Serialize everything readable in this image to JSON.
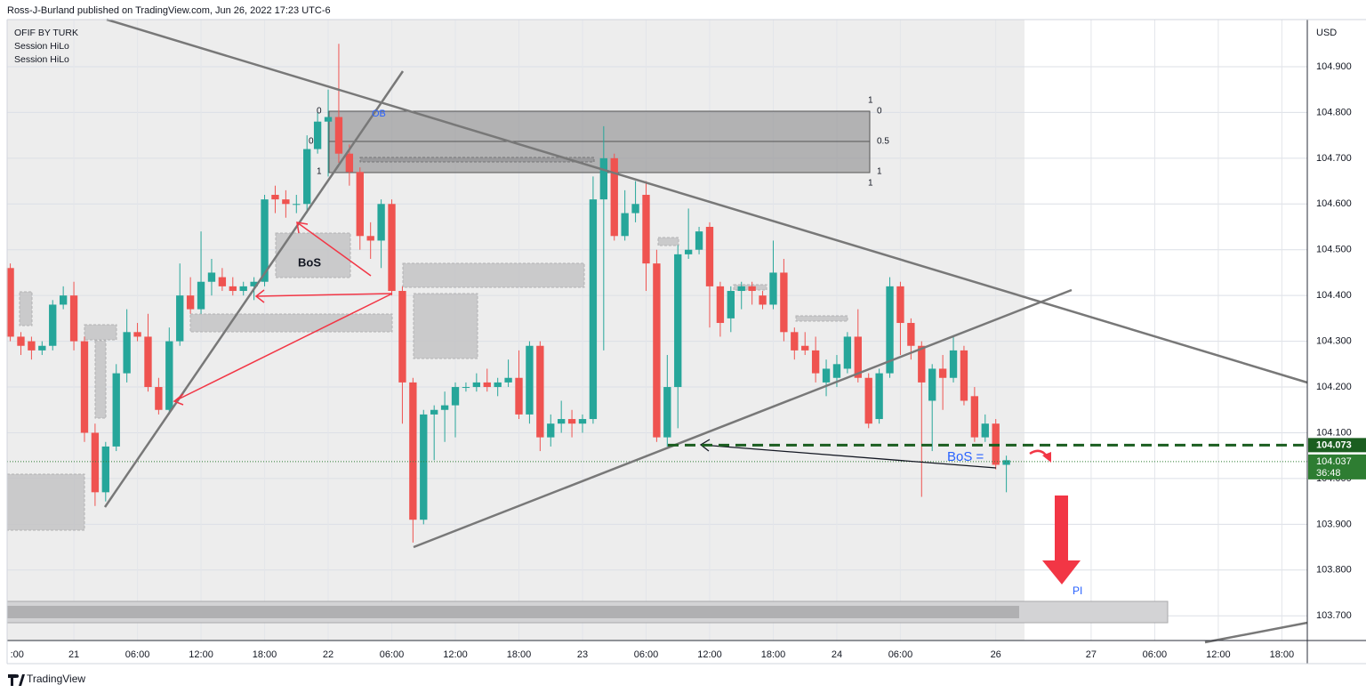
{
  "header": "Ross-J-Burland published on TradingView.com, Jun 26, 2022 17:23 UTC-6",
  "footer": "TradingView",
  "chart_data": {
    "type": "candlestick",
    "legend": [
      "OFIF BY TURK",
      "Session HiLo",
      "Session HiLo"
    ],
    "y_axis_label": "USD",
    "up_color": "#26a69a",
    "down_color": "#ef5350",
    "grid": true,
    "ylim": [
      103.646,
      105.003
    ],
    "yticks": [
      {
        "value": 103.7,
        "label": "103.700"
      },
      {
        "value": 103.8,
        "label": "103.800"
      },
      {
        "value": 103.9,
        "label": "103.900"
      },
      {
        "value": 104.0,
        "label": "104.000"
      },
      {
        "value": 104.1,
        "label": "104.100"
      },
      {
        "value": 104.2,
        "label": "104.200"
      },
      {
        "value": 104.3,
        "label": "104.300"
      },
      {
        "value": 104.4,
        "label": "104.400"
      },
      {
        "value": 104.5,
        "label": "104.500"
      },
      {
        "value": 104.6,
        "label": "104.600"
      },
      {
        "value": 104.7,
        "label": "104.700"
      },
      {
        "value": 104.8,
        "label": "104.800"
      },
      {
        "value": 104.9,
        "label": "104.900"
      }
    ],
    "xlim": [
      -0.3,
      122.4
    ],
    "xticks": [
      {
        "value": 0,
        "label": ":00"
      },
      {
        "value": 6,
        "label": "21"
      },
      {
        "value": 12,
        "label": "06:00"
      },
      {
        "value": 18,
        "label": "12:00"
      },
      {
        "value": 24,
        "label": "18:00"
      },
      {
        "value": 30,
        "label": "22"
      },
      {
        "value": 36,
        "label": "06:00"
      },
      {
        "value": 42,
        "label": "12:00"
      },
      {
        "value": 48,
        "label": "18:00"
      },
      {
        "value": 54,
        "label": "23"
      },
      {
        "value": 60,
        "label": "06:00"
      },
      {
        "value": 66,
        "label": "12:00"
      },
      {
        "value": 72,
        "label": "18:00"
      },
      {
        "value": 78,
        "label": "24"
      },
      {
        "value": 84,
        "label": "06:00"
      },
      {
        "value": 93,
        "label": "26"
      },
      {
        "value": 102,
        "label": "27"
      },
      {
        "value": 108,
        "label": "06:00"
      },
      {
        "value": 114,
        "label": "12:00"
      },
      {
        "value": 120,
        "label": "18:00"
      }
    ],
    "open": [
      104.46,
      104.31,
      104.3,
      104.28,
      104.29,
      104.38,
      104.4,
      104.3,
      104.1,
      103.97,
      104.07,
      104.23,
      104.32,
      104.31,
      104.2,
      104.15,
      104.3,
      104.4,
      104.37,
      104.43,
      104.44,
      104.42,
      104.41,
      104.42,
      104.43,
      104.62,
      104.61,
      104.6,
      104.6,
      104.72,
      104.78,
      104.79,
      104.71,
      104.67,
      104.53,
      104.52,
      104.6,
      104.41,
      104.21,
      103.91,
      104.14,
      104.15,
      104.16,
      104.2,
      104.2,
      104.21,
      104.2,
      104.21,
      104.22,
      104.14,
      104.29,
      104.09,
      104.12,
      104.13,
      104.12,
      104.13,
      104.61,
      104.7,
      104.53,
      104.58,
      104.62,
      104.47,
      104.09,
      104.2,
      104.49,
      104.5,
      104.55,
      104.42,
      104.35,
      104.41,
      104.42,
      104.4,
      104.38,
      104.45,
      104.32,
      104.29,
      104.28,
      104.21,
      104.22,
      104.24,
      104.31,
      104.22,
      104.13,
      104.23,
      104.42,
      104.34,
      104.29,
      104.17,
      104.24,
      104.22,
      104.28,
      104.18,
      104.09,
      104.12,
      104.03
    ],
    "high": [
      104.47,
      104.32,
      104.31,
      104.3,
      104.39,
      104.42,
      104.43,
      104.31,
      104.12,
      104.08,
      104.25,
      104.37,
      104.34,
      104.36,
      104.22,
      104.33,
      104.47,
      104.44,
      104.54,
      104.48,
      104.46,
      104.44,
      104.43,
      104.44,
      104.62,
      104.64,
      104.63,
      104.62,
      104.75,
      104.8,
      104.85,
      104.95,
      104.73,
      104.68,
      104.56,
      104.61,
      104.61,
      104.42,
      104.22,
      104.15,
      104.16,
      104.19,
      104.21,
      104.21,
      104.23,
      104.24,
      104.22,
      104.26,
      104.28,
      104.3,
      104.3,
      104.14,
      104.17,
      104.15,
      104.14,
      104.66,
      104.77,
      104.71,
      104.63,
      104.65,
      104.65,
      104.5,
      104.27,
      104.51,
      104.59,
      104.55,
      104.56,
      104.43,
      104.42,
      104.43,
      104.43,
      104.41,
      104.52,
      104.48,
      104.33,
      104.32,
      104.31,
      104.26,
      104.27,
      104.32,
      104.37,
      104.23,
      104.24,
      104.44,
      104.43,
      104.35,
      104.3,
      104.25,
      104.27,
      104.31,
      104.29,
      104.2,
      104.14,
      104.13,
      104.05
    ],
    "low": [
      104.3,
      104.27,
      104.26,
      104.27,
      104.28,
      104.37,
      104.28,
      104.08,
      103.94,
      103.95,
      104.06,
      104.21,
      104.3,
      104.19,
      104.14,
      104.14,
      104.29,
      104.36,
      104.36,
      104.4,
      104.41,
      104.4,
      104.4,
      104.39,
      104.42,
      104.58,
      104.57,
      104.58,
      104.58,
      104.71,
      104.66,
      104.69,
      104.64,
      104.5,
      104.48,
      104.46,
      104.4,
      104.12,
      103.86,
      103.9,
      104.04,
      104.08,
      104.09,
      104.19,
      104.19,
      104.19,
      104.18,
      104.2,
      104.13,
      104.12,
      104.06,
      104.07,
      104.1,
      104.09,
      104.1,
      104.12,
      104.28,
      104.52,
      104.52,
      104.56,
      104.41,
      104.08,
      104.07,
      104.11,
      104.48,
      104.49,
      104.33,
      104.31,
      104.32,
      104.37,
      104.38,
      104.37,
      104.37,
      104.3,
      104.26,
      104.27,
      104.21,
      104.18,
      104.2,
      104.23,
      104.21,
      104.11,
      104.12,
      104.22,
      104.27,
      104.26,
      103.96,
      104.06,
      104.15,
      104.21,
      104.16,
      104.08,
      104.08,
      104.02,
      103.97
    ],
    "close": [
      104.31,
      104.29,
      104.28,
      104.29,
      104.38,
      104.4,
      104.3,
      104.1,
      103.97,
      104.07,
      104.23,
      104.32,
      104.31,
      104.2,
      104.15,
      104.3,
      104.4,
      104.37,
      104.43,
      104.45,
      104.42,
      104.41,
      104.42,
      104.43,
      104.61,
      104.61,
      104.6,
      104.6,
      104.72,
      104.78,
      104.79,
      104.71,
      104.67,
      104.53,
      104.52,
      104.6,
      104.41,
      104.21,
      103.91,
      104.14,
      104.15,
      104.16,
      104.2,
      104.2,
      104.21,
      104.2,
      104.21,
      104.22,
      104.14,
      104.29,
      104.09,
      104.12,
      104.13,
      104.12,
      104.13,
      104.61,
      104.7,
      104.53,
      104.58,
      104.6,
      104.47,
      104.09,
      104.2,
      104.49,
      104.5,
      104.54,
      104.42,
      104.34,
      104.41,
      104.42,
      104.41,
      104.38,
      104.45,
      104.32,
      104.28,
      104.28,
      104.23,
      104.24,
      104.25,
      104.31,
      104.22,
      104.12,
      104.23,
      104.42,
      104.34,
      104.29,
      104.21,
      104.24,
      104.22,
      104.28,
      104.17,
      104.09,
      104.12,
      104.03,
      104.04
    ],
    "hline": {
      "value": 104.073,
      "label": "104.073",
      "color": "#1b5e20"
    },
    "last_price": {
      "value": 104.037,
      "label": "104.037",
      "countdown": "36:48",
      "color": "#2e7d32"
    },
    "annotations": {
      "bos_1": "BoS",
      "bos_2": "BoS =",
      "ob": "OB",
      "pi": "PI",
      "fib_right": [
        "1",
        "0",
        "0.5",
        "1",
        "1"
      ],
      "fib_left": [
        "0",
        "0",
        "1"
      ]
    }
  }
}
